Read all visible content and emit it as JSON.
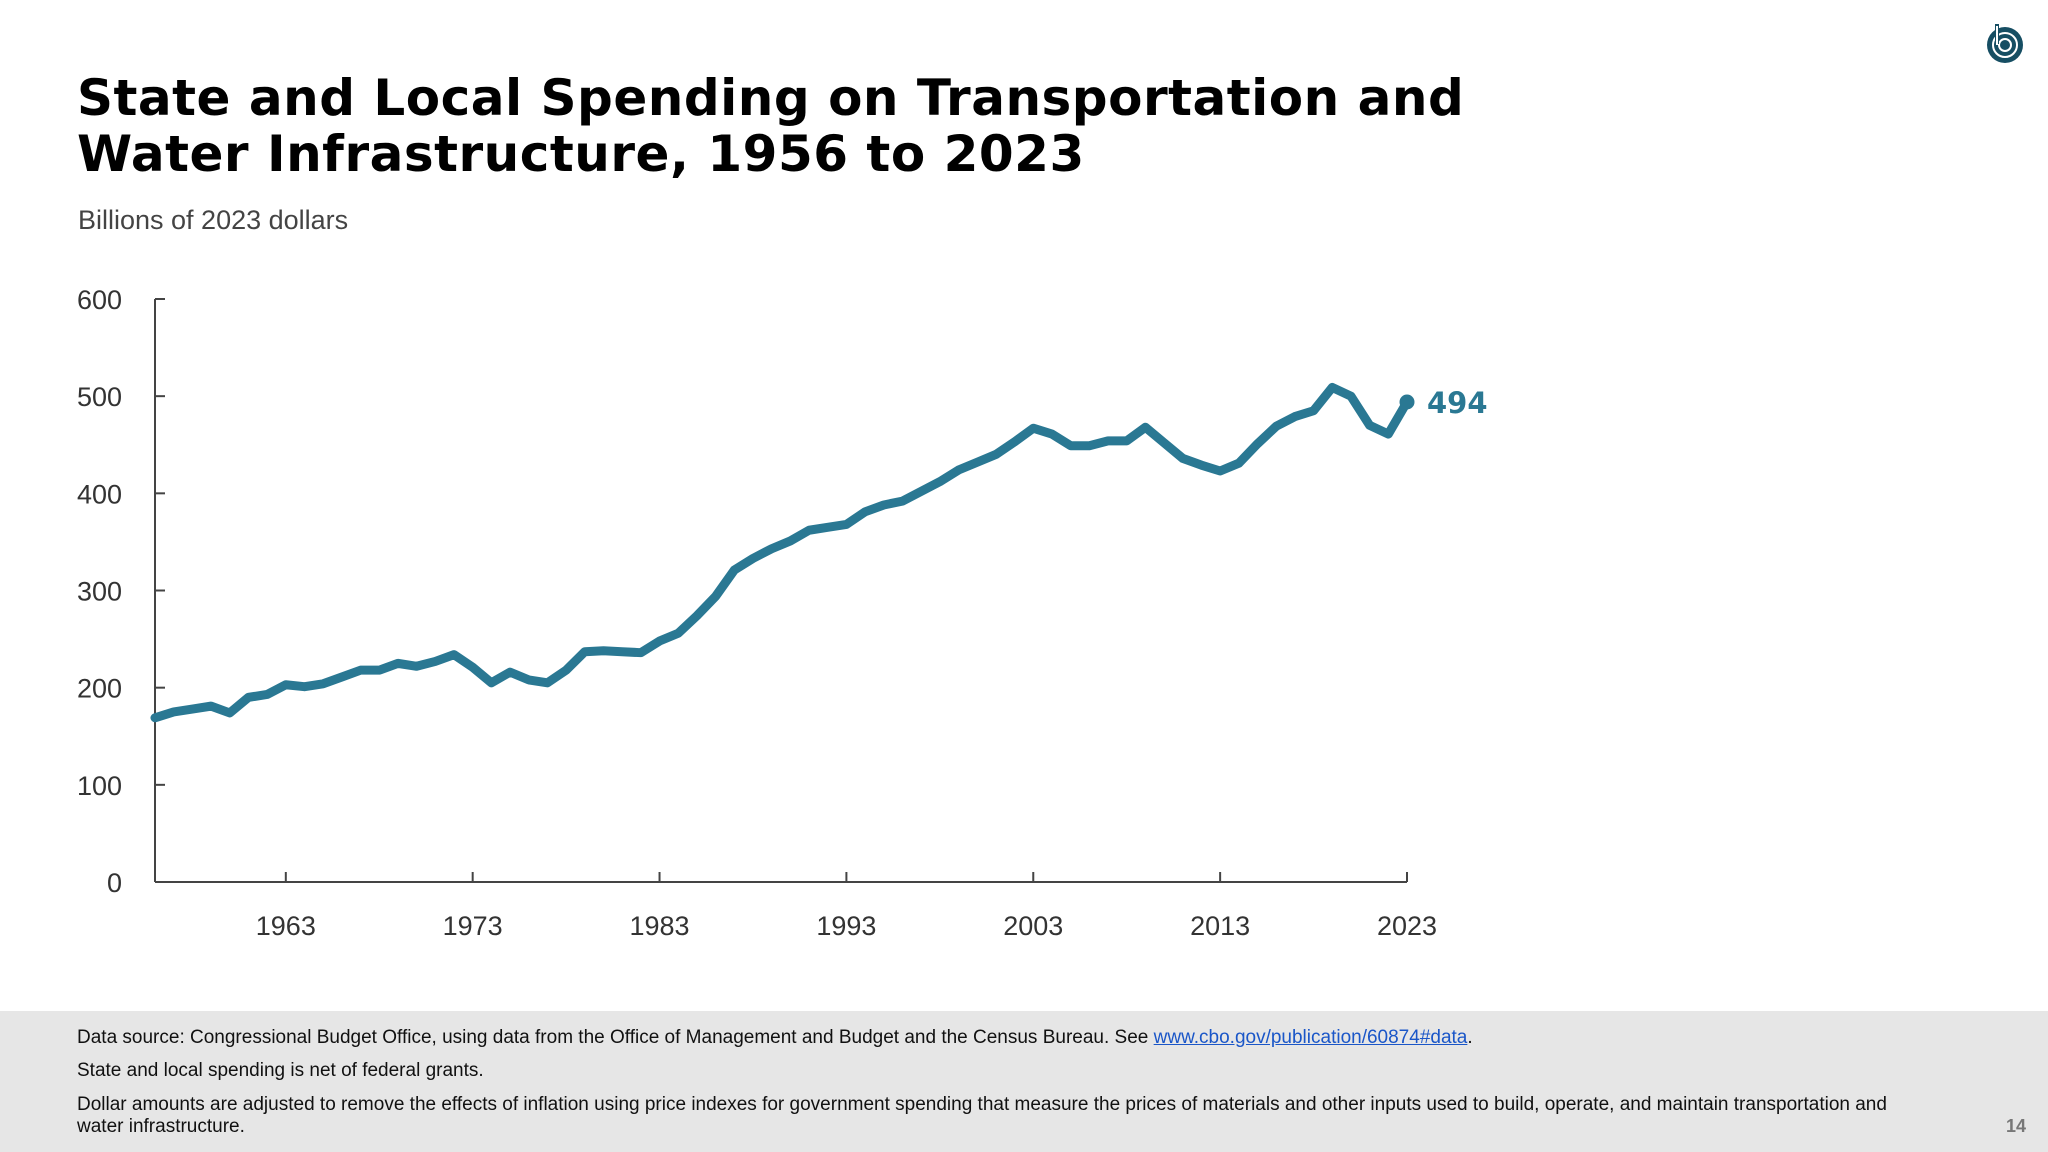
{
  "title_line1": "State and Local Spending on Transportation and",
  "title_line2": "Water Infrastructure, 1956 to 2023",
  "subtitle": "Billions of 2023 dollars",
  "logo": "CBO",
  "footer": {
    "source_prefix": "Data source: Congressional Budget Office, using data from the Office of Management and Budget and the Census Bureau. See ",
    "source_link": "www.cbo.gov/publication/60874#data",
    "source_suffix": ".",
    "note1": "State and local spending is net of federal grants.",
    "note2": "Dollar amounts are adjusted to remove the effects of inflation using price indexes for government spending that measure the prices of materials and other inputs used to build, operate, and maintain transportation and water infrastructure."
  },
  "page_number": "14",
  "colors": {
    "line": "#2a7893",
    "label": "#2a7893",
    "axis": "#444444",
    "footer_bg": "#e6e6e6"
  },
  "chart_data": {
    "type": "line",
    "title": "State and Local Spending on Transportation and Water Infrastructure, 1956 to 2023",
    "ylabel": "Billions of 2023 dollars",
    "xlim": [
      1956,
      2023
    ],
    "ylim": [
      0,
      600
    ],
    "yticks": [
      "0",
      "100",
      "200",
      "300",
      "400",
      "500",
      "600"
    ],
    "xticks": [
      "1963",
      "1973",
      "1983",
      "1993",
      "2003",
      "2013",
      "2023"
    ],
    "grid": false,
    "end_label": "494",
    "x_start": 1956,
    "values": [
      169,
      175,
      178,
      181,
      174,
      190,
      193,
      203,
      201,
      204,
      211,
      218,
      218,
      225,
      222,
      227,
      234,
      221,
      205,
      216,
      208,
      205,
      218,
      237,
      238,
      237,
      236,
      248,
      256,
      274,
      294,
      321,
      333,
      343,
      351,
      362,
      365,
      368,
      381,
      388,
      392,
      402,
      412,
      424,
      432,
      440,
      453,
      467,
      461,
      449,
      449,
      454,
      454,
      468,
      452,
      436,
      429,
      423,
      431,
      451,
      469,
      479,
      485,
      509,
      500,
      470,
      461,
      494
    ]
  }
}
